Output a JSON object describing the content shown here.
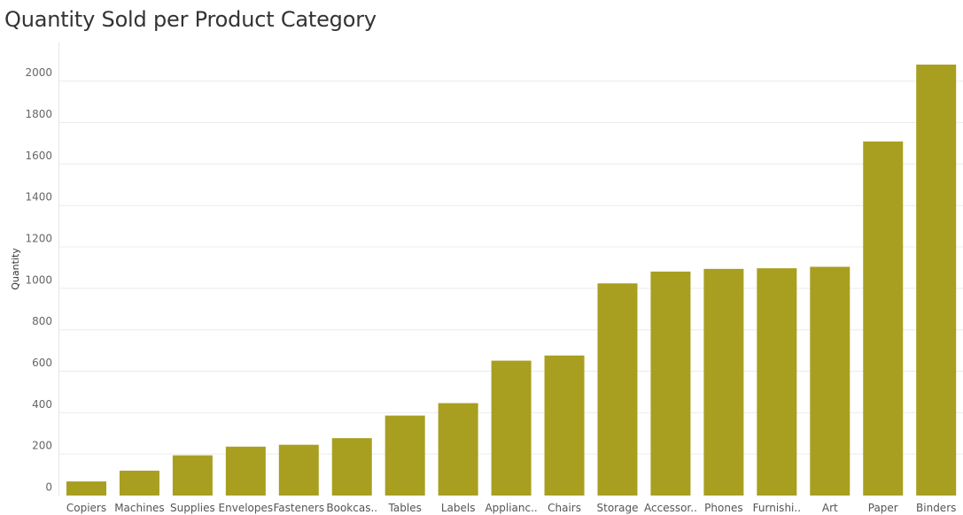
{
  "chart_data": {
    "type": "bar",
    "title": "Quantity Sold per Product Category",
    "xlabel": "",
    "ylabel": "Quantity",
    "ylim": [
      0,
      2080
    ],
    "yticks": [
      0,
      200,
      400,
      600,
      800,
      1000,
      1200,
      1400,
      1600,
      1800,
      2000
    ],
    "grid": true,
    "bar_color": "#A89F21",
    "categories": [
      "Copiers",
      "Machines",
      "Supplies",
      "Envelopes",
      "Fasteners",
      "Bookcas..",
      "Tables",
      "Labels",
      "Applianc..",
      "Chairs",
      "Storage",
      "Accessor..",
      "Phones",
      "Furnishi..",
      "Art",
      "Paper",
      "Binders"
    ],
    "values": [
      68,
      120,
      194,
      236,
      245,
      277,
      386,
      446,
      651,
      676,
      1024,
      1081,
      1094,
      1097,
      1104,
      1709,
      2080
    ]
  }
}
